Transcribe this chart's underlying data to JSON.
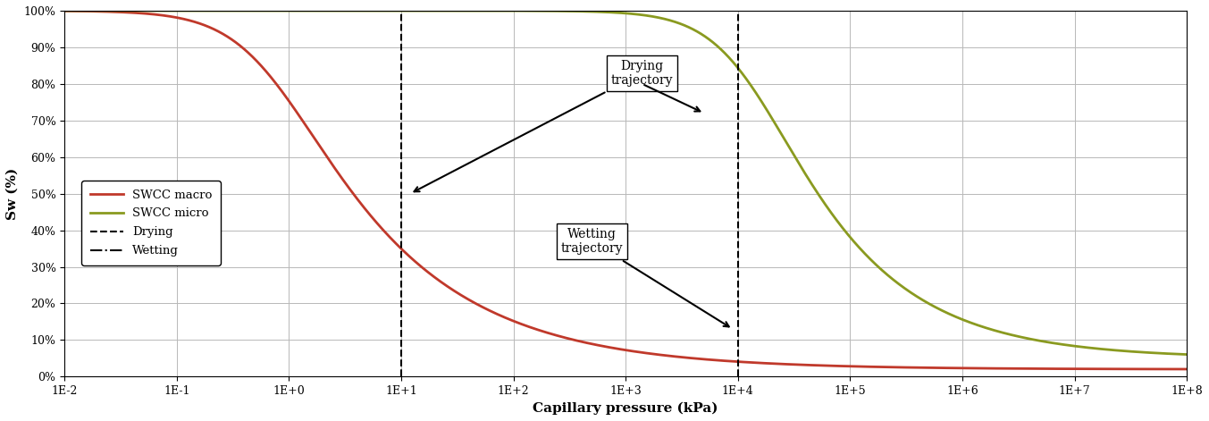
{
  "title": "",
  "xlabel": "Capillary pressure (kPa)",
  "ylabel": "Sw (%)",
  "xmin": 0.01,
  "xmax": 100000000.0,
  "ymin": 0.0,
  "ymax": 1.0,
  "swcc_macro_color": "#c0392b",
  "swcc_micro_color": "#8a9a20",
  "drying_line_x": 10.0,
  "wetting_line_x": 10000.0,
  "drying_line_color": "#000000",
  "wetting_line_color": "#000000",
  "legend_labels": [
    "SWCC macro",
    "SWCC micro",
    "Drying",
    "Wetting"
  ],
  "grid_color": "#b8b8b8",
  "background_color": "#ffffff",
  "annotation_drying": "Drying\ntrajectory",
  "annotation_wetting": "Wetting\ntrajectory",
  "macro_alpha_vg": 1.5,
  "macro_n_vg": 1.4,
  "macro_Swr": 0.02,
  "micro_alpha_vg": 8e-05,
  "micro_n_vg": 1.5,
  "micro_Swr": 0.05
}
